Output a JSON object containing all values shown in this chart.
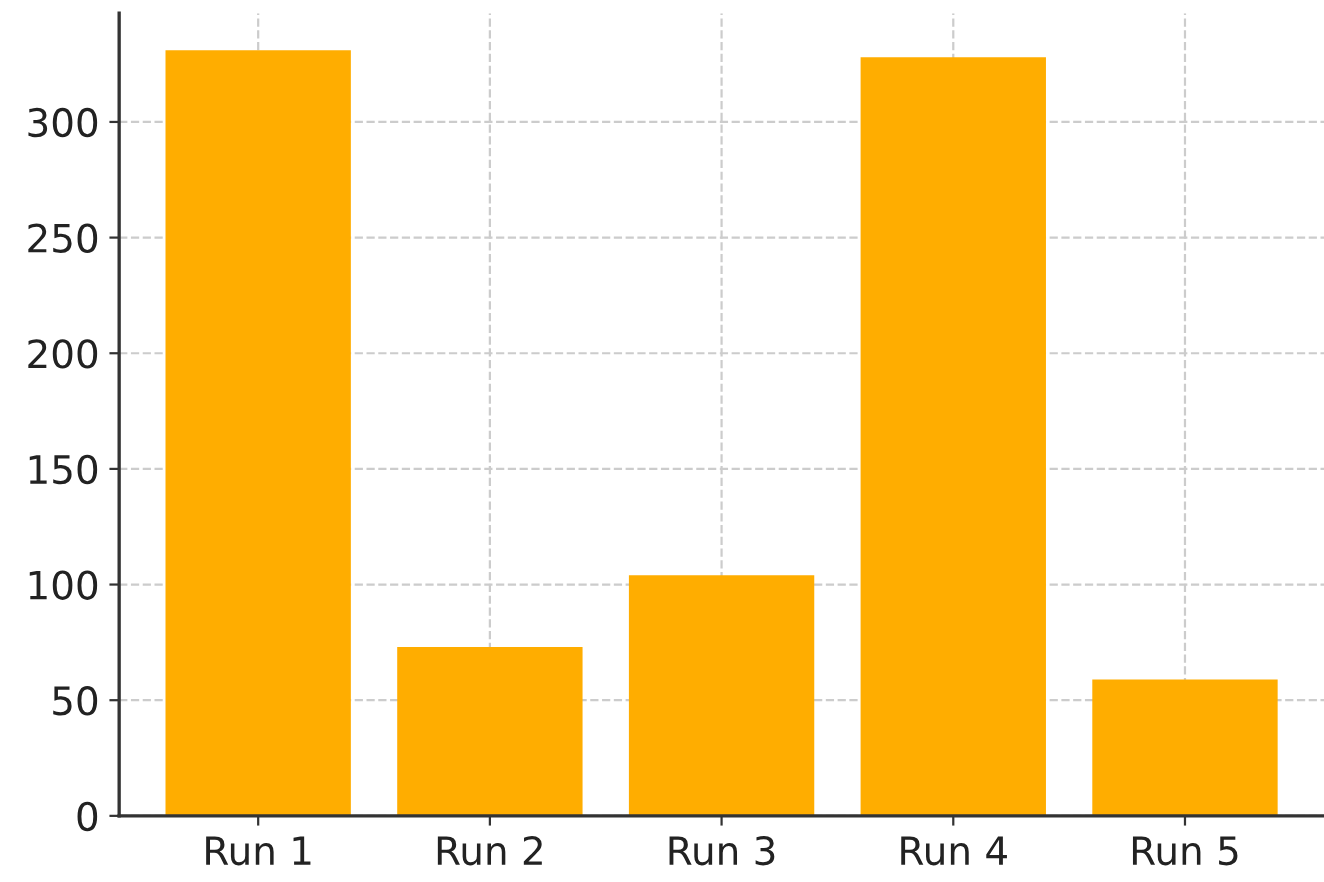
{
  "chart_data": {
    "type": "bar",
    "categories": [
      "Run 1",
      "Run 2",
      "Run 3",
      "Run 4",
      "Run 5"
    ],
    "values": [
      331,
      73,
      104,
      328,
      59
    ],
    "color": "#ffad00",
    "ylim": [
      0,
      347
    ],
    "yticks": [
      0,
      50,
      100,
      150,
      200,
      250,
      300
    ],
    "grid": true,
    "line_style": "dashed"
  }
}
